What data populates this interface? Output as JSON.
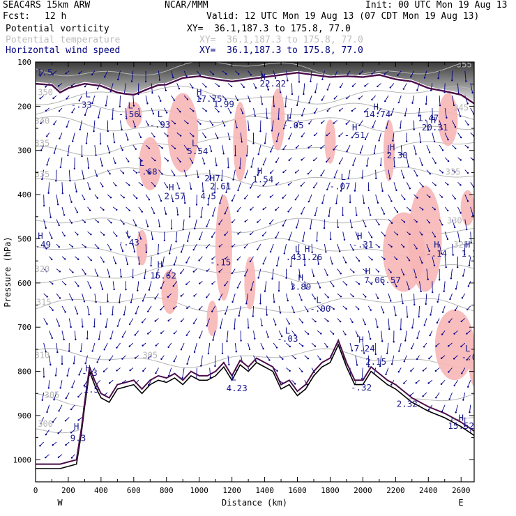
{
  "header": {
    "model": "SEAC4RS 15km ARW",
    "org": "NCAR/MMM",
    "init": "Init: 00 UTC Mon 19 Aug 13",
    "fcst_label": "Fcst:",
    "fcst_value": "12 h",
    "valid": "Valid: 12 UTC Mon 19 Aug 13 (07 CDT Mon 19 Aug 13)",
    "fields": [
      {
        "name": "Potential vorticity",
        "xy": "XY=  36.1,187.3 to 175.8, 77.0",
        "color": "#000000"
      },
      {
        "name": "Potential temperature",
        "xy": "XY=  36.1,187.3 to 175.8, 77.0",
        "color": "#bdbdbd"
      },
      {
        "name": "Horizontal wind speed",
        "xy": "XY=  36.1,187.3 to 175.8, 77.0",
        "color": "#000080"
      }
    ]
  },
  "chart_data": {
    "type": "cross-section",
    "xlabel": "Distance (km)",
    "ylabel": "Pressure (hPa)",
    "xlim": [
      0,
      2680
    ],
    "ylim": [
      1050,
      100
    ],
    "x_ticks": [
      0,
      200,
      400,
      600,
      800,
      1000,
      1200,
      1400,
      1600,
      1800,
      2000,
      2200,
      2400,
      2600
    ],
    "y_ticks": [
      100,
      200,
      300,
      400,
      500,
      600,
      700,
      800,
      900,
      1000
    ],
    "x_end_labels": {
      "left": "W",
      "right": "E"
    },
    "colors": {
      "pv_shade": "#555555",
      "pv_contour": "#4a0d4a",
      "pink": "#f7b6b6",
      "theta": "#b5b5b5",
      "wind": "#00008b",
      "terrain": "#000000"
    },
    "terrain": [
      [
        0,
        1020
      ],
      [
        150,
        1020
      ],
      [
        250,
        1010
      ],
      [
        280,
        940
      ],
      [
        300,
        880
      ],
      [
        330,
        800
      ],
      [
        360,
        830
      ],
      [
        400,
        860
      ],
      [
        450,
        870
      ],
      [
        500,
        840
      ],
      [
        550,
        835
      ],
      [
        600,
        830
      ],
      [
        650,
        850
      ],
      [
        700,
        830
      ],
      [
        750,
        820
      ],
      [
        800,
        825
      ],
      [
        850,
        815
      ],
      [
        900,
        830
      ],
      [
        950,
        810
      ],
      [
        1000,
        820
      ],
      [
        1050,
        820
      ],
      [
        1100,
        810
      ],
      [
        1150,
        790
      ],
      [
        1200,
        820
      ],
      [
        1250,
        785
      ],
      [
        1300,
        800
      ],
      [
        1350,
        780
      ],
      [
        1400,
        790
      ],
      [
        1450,
        800
      ],
      [
        1500,
        840
      ],
      [
        1550,
        830
      ],
      [
        1600,
        855
      ],
      [
        1650,
        840
      ],
      [
        1700,
        810
      ],
      [
        1750,
        790
      ],
      [
        1800,
        780
      ],
      [
        1850,
        740
      ],
      [
        1900,
        790
      ],
      [
        1950,
        830
      ],
      [
        2000,
        830
      ],
      [
        2050,
        800
      ],
      [
        2100,
        815
      ],
      [
        2150,
        830
      ],
      [
        2200,
        840
      ],
      [
        2300,
        870
      ],
      [
        2400,
        890
      ],
      [
        2500,
        905
      ],
      [
        2600,
        925
      ],
      [
        2680,
        945
      ]
    ],
    "tropopause": [
      [
        0,
        145
      ],
      [
        100,
        148
      ],
      [
        150,
        165
      ],
      [
        200,
        155
      ],
      [
        300,
        145
      ],
      [
        400,
        150
      ],
      [
        500,
        165
      ],
      [
        550,
        168
      ],
      [
        600,
        170
      ],
      [
        700,
        155
      ],
      [
        750,
        148
      ],
      [
        800,
        147
      ],
      [
        900,
        132
      ],
      [
        1000,
        128
      ],
      [
        1100,
        135
      ],
      [
        1200,
        140
      ],
      [
        1300,
        135
      ],
      [
        1400,
        130
      ],
      [
        1500,
        125
      ],
      [
        1600,
        120
      ],
      [
        1700,
        125
      ],
      [
        1800,
        130
      ],
      [
        1900,
        128
      ],
      [
        2000,
        130
      ],
      [
        2100,
        125
      ],
      [
        2200,
        135
      ],
      [
        2300,
        140
      ],
      [
        2400,
        155
      ],
      [
        2500,
        162
      ],
      [
        2600,
        170
      ],
      [
        2680,
        190
      ]
    ],
    "theta_contours": [
      {
        "label": "355",
        "p": 115
      },
      {
        "label": "350",
        "p": 175
      },
      {
        "label": "345",
        "p": 215
      },
      {
        "label": "340",
        "p": 240
      },
      {
        "label": "335",
        "p": 290
      },
      {
        "label": "335",
        "p": 360
      },
      {
        "label": "330",
        "p": 470
      },
      {
        "label": "325",
        "p": 520
      },
      {
        "label": "320",
        "p": 580
      },
      {
        "label": "315",
        "p": 650
      },
      {
        "label": "310",
        "p": 770
      },
      {
        "label": "305",
        "p": 860
      },
      {
        "label": "300",
        "p": 920
      }
    ],
    "theta_labels": [
      {
        "text": "355",
        "x": 2620,
        "p": 112
      },
      {
        "text": "350",
        "x": 60,
        "p": 175
      },
      {
        "text": "345",
        "x": 2600,
        "p": 210
      },
      {
        "text": "340",
        "x": 40,
        "p": 240
      },
      {
        "text": "335",
        "x": 40,
        "p": 290
      },
      {
        "text": "335",
        "x": 40,
        "p": 360
      },
      {
        "text": "335",
        "x": 2550,
        "p": 355
      },
      {
        "text": "330",
        "x": 2560,
        "p": 465
      },
      {
        "text": "325",
        "x": 2600,
        "p": 520
      },
      {
        "text": "320",
        "x": 40,
        "p": 575
      },
      {
        "text": "315",
        "x": 50,
        "p": 650
      },
      {
        "text": "310",
        "x": 40,
        "p": 770
      },
      {
        "text": "305",
        "x": 100,
        "p": 860
      },
      {
        "text": "305",
        "x": 700,
        "p": 770
      },
      {
        "text": "300",
        "x": 60,
        "p": 925
      }
    ],
    "hl_labels": [
      {
        "t": "L",
        "x": 320,
        "p": 180
      },
      {
        "t": "-.33",
        "x": 280,
        "p": 203
      },
      {
        "t": "L",
        "x": 580,
        "p": 205
      },
      {
        "t": "-.56",
        "x": 570,
        "p": 225
      },
      {
        "t": "L",
        "x": 760,
        "p": 225
      },
      {
        "t": "-.93",
        "x": 760,
        "p": 248
      },
      {
        "t": "H",
        "x": 1000,
        "p": 175
      },
      {
        "t": "17.75",
        "x": 1060,
        "p": 190
      },
      {
        "t": "1.99",
        "x": 1150,
        "p": 202
      },
      {
        "t": "H",
        "x": 1390,
        "p": 140
      },
      {
        "t": "22.22",
        "x": 1450,
        "p": 155
      },
      {
        "t": "L",
        "x": 1550,
        "p": 233
      },
      {
        "t": "-.05",
        "x": 1575,
        "p": 250
      },
      {
        "t": "H",
        "x": 1950,
        "p": 255
      },
      {
        "t": "-.51",
        "x": 1950,
        "p": 272
      },
      {
        "t": "H",
        "x": 2080,
        "p": 208
      },
      {
        "t": "14.74",
        "x": 2090,
        "p": 225
      },
      {
        "t": "1.47",
        "x": 2400,
        "p": 233
      },
      {
        "t": "H",
        "x": 2430,
        "p": 238
      },
      {
        "t": "20.31",
        "x": 2440,
        "p": 255
      },
      {
        "t": "H",
        "x": 2180,
        "p": 300
      },
      {
        "t": "2.30",
        "x": 2210,
        "p": 318
      },
      {
        "t": "L",
        "x": 970,
        "p": 290
      },
      {
        "t": "5.54",
        "x": 990,
        "p": 308
      },
      {
        "t": "L",
        "x": 650,
        "p": 335
      },
      {
        "t": "-.68",
        "x": 680,
        "p": 355
      },
      {
        "t": "H",
        "x": 1370,
        "p": 353
      },
      {
        "t": "1.54",
        "x": 1390,
        "p": 372
      },
      {
        "t": "2H7",
        "x": 1080,
        "p": 370
      },
      {
        "t": "2.61",
        "x": 1130,
        "p": 388
      },
      {
        "t": "L",
        "x": 1880,
        "p": 367
      },
      {
        "t": "-.07",
        "x": 1860,
        "p": 388
      },
      {
        "t": "H",
        "x": 830,
        "p": 390
      },
      {
        "t": "2.57",
        "x": 850,
        "p": 410
      },
      {
        "t": "4.5",
        "x": 1055,
        "p": 410
      },
      {
        "t": "H",
        "x": 30,
        "p": 500
      },
      {
        "t": "-.49",
        "x": 30,
        "p": 520
      },
      {
        "t": "L",
        "x": 570,
        "p": 495
      },
      {
        "t": "-.43",
        "x": 570,
        "p": 515
      },
      {
        "t": "H",
        "x": 1980,
        "p": 500
      },
      {
        "t": "-.31",
        "x": 2000,
        "p": 520
      },
      {
        "t": "L",
        "x": 1600,
        "p": 530
      },
      {
        "t": "H",
        "x": 1660,
        "p": 530
      },
      {
        "t": ".431.26",
        "x": 1640,
        "p": 548
      },
      {
        "t": "-.15",
        "x": 1130,
        "p": 560
      },
      {
        "t": "H",
        "x": 2450,
        "p": 520
      },
      {
        "t": "-.14",
        "x": 2450,
        "p": 540
      },
      {
        "t": "H",
        "x": 2640,
        "p": 520
      },
      {
        "t": "1.1",
        "x": 2650,
        "p": 540
      },
      {
        "t": "H",
        "x": 760,
        "p": 565
      },
      {
        "t": "15.62",
        "x": 780,
        "p": 590
      },
      {
        "t": "H",
        "x": 2030,
        "p": 580
      },
      {
        "t": "7.06.57",
        "x": 2120,
        "p": 600
      },
      {
        "t": "H",
        "x": 1620,
        "p": 595
      },
      {
        "t": "3.89",
        "x": 1620,
        "p": 615
      },
      {
        "t": "L",
        "x": 1730,
        "p": 645
      },
      {
        "t": "-.00",
        "x": 1740,
        "p": 665
      },
      {
        "t": "L",
        "x": 1540,
        "p": 715
      },
      {
        "t": "-.03",
        "x": 1540,
        "p": 733
      },
      {
        "t": "H",
        "x": 1990,
        "p": 735
      },
      {
        "t": "7.24",
        "x": 2010,
        "p": 755
      },
      {
        "t": "L",
        "x": 2640,
        "p": 755
      },
      {
        "t": "-.0",
        "x": 2650,
        "p": 775
      },
      {
        "t": "2.15",
        "x": 2080,
        "p": 785
      },
      {
        "t": "H",
        "x": 320,
        "p": 800
      },
      {
        "t": "1.5",
        "x": 340,
        "p": 848
      },
      {
        "t": "-.3",
        "x": 330,
        "p": 810
      },
      {
        "t": "L",
        "x": 1210,
        "p": 820
      },
      {
        "t": "4.23",
        "x": 1230,
        "p": 845
      },
      {
        "t": "-.32",
        "x": 1990,
        "p": 843
      },
      {
        "t": "2.32",
        "x": 2270,
        "p": 880
      },
      {
        "t": "H",
        "x": 250,
        "p": 932
      },
      {
        "t": "9.3",
        "x": 260,
        "p": 958
      },
      {
        "t": "-1.5",
        "x": 40,
        "p": 130
      },
      {
        "t": "H",
        "x": 2600,
        "p": 912
      },
      {
        "t": "15.52",
        "x": 2600,
        "p": 930
      }
    ]
  }
}
